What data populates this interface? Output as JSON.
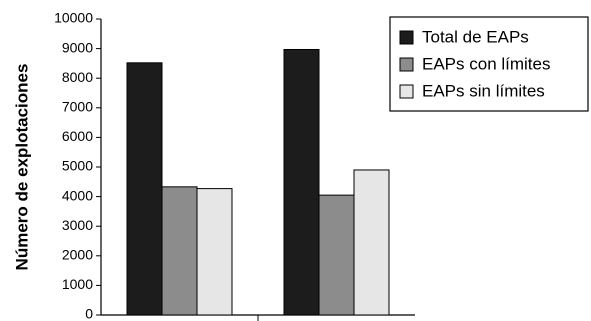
{
  "chart_data": {
    "type": "bar",
    "categories": [
      "",
      ""
    ],
    "series": [
      {
        "name": "Total de EAPs",
        "values": [
          8520,
          8970
        ],
        "color": "#1c1c1c"
      },
      {
        "name": "EAPs con límites",
        "values": [
          4330,
          4050
        ],
        "color": "#8c8c8c"
      },
      {
        "name": "EAPs sin límites",
        "values": [
          4270,
          4900
        ],
        "color": "#e6e6e6"
      }
    ],
    "ylabel": "Número de explotaciones",
    "ylim": [
      0,
      10000
    ],
    "yticks": [
      0,
      1000,
      2000,
      3000,
      4000,
      5000,
      6000,
      7000,
      8000,
      9000,
      10000
    ],
    "legend_position": "top-right",
    "grid": false
  }
}
